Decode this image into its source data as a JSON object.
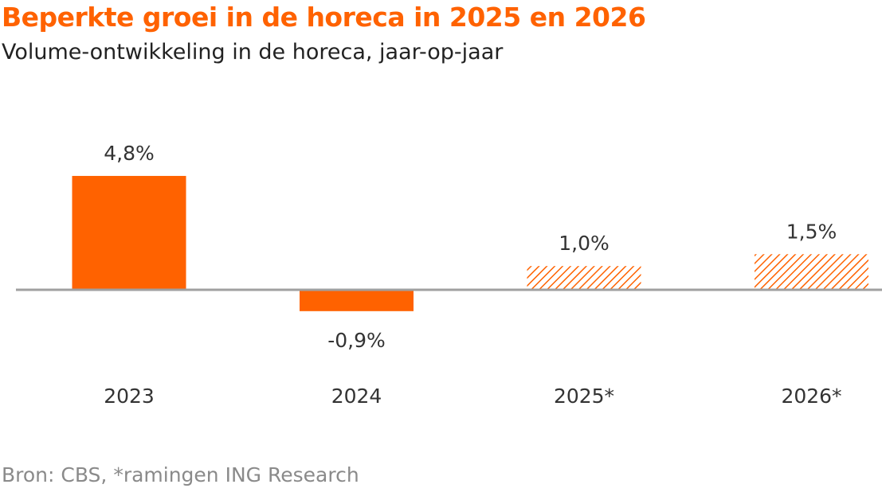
{
  "chart_data": {
    "type": "bar",
    "title": "Beperkte groei in de horeca in 2025 en 2026",
    "subtitle": "Volume-ontwikkeling in de horeca, jaar-op-jaar",
    "categories": [
      "2023",
      "2024",
      "2025*",
      "2026*"
    ],
    "values": [
      4.8,
      -0.9,
      1.0,
      1.5
    ],
    "data_labels": [
      "4,8%",
      "-0,9%",
      "1,0%",
      "1,5%"
    ],
    "forecast": [
      false,
      false,
      true,
      true
    ],
    "xlabel": "",
    "ylabel": "",
    "ylim": [
      -0.9,
      4.8
    ],
    "grid": false,
    "source": "Bron: CBS, *ramingen ING Research",
    "colors": {
      "bar": "#ff6200",
      "axis": "#a0a0a0"
    }
  }
}
